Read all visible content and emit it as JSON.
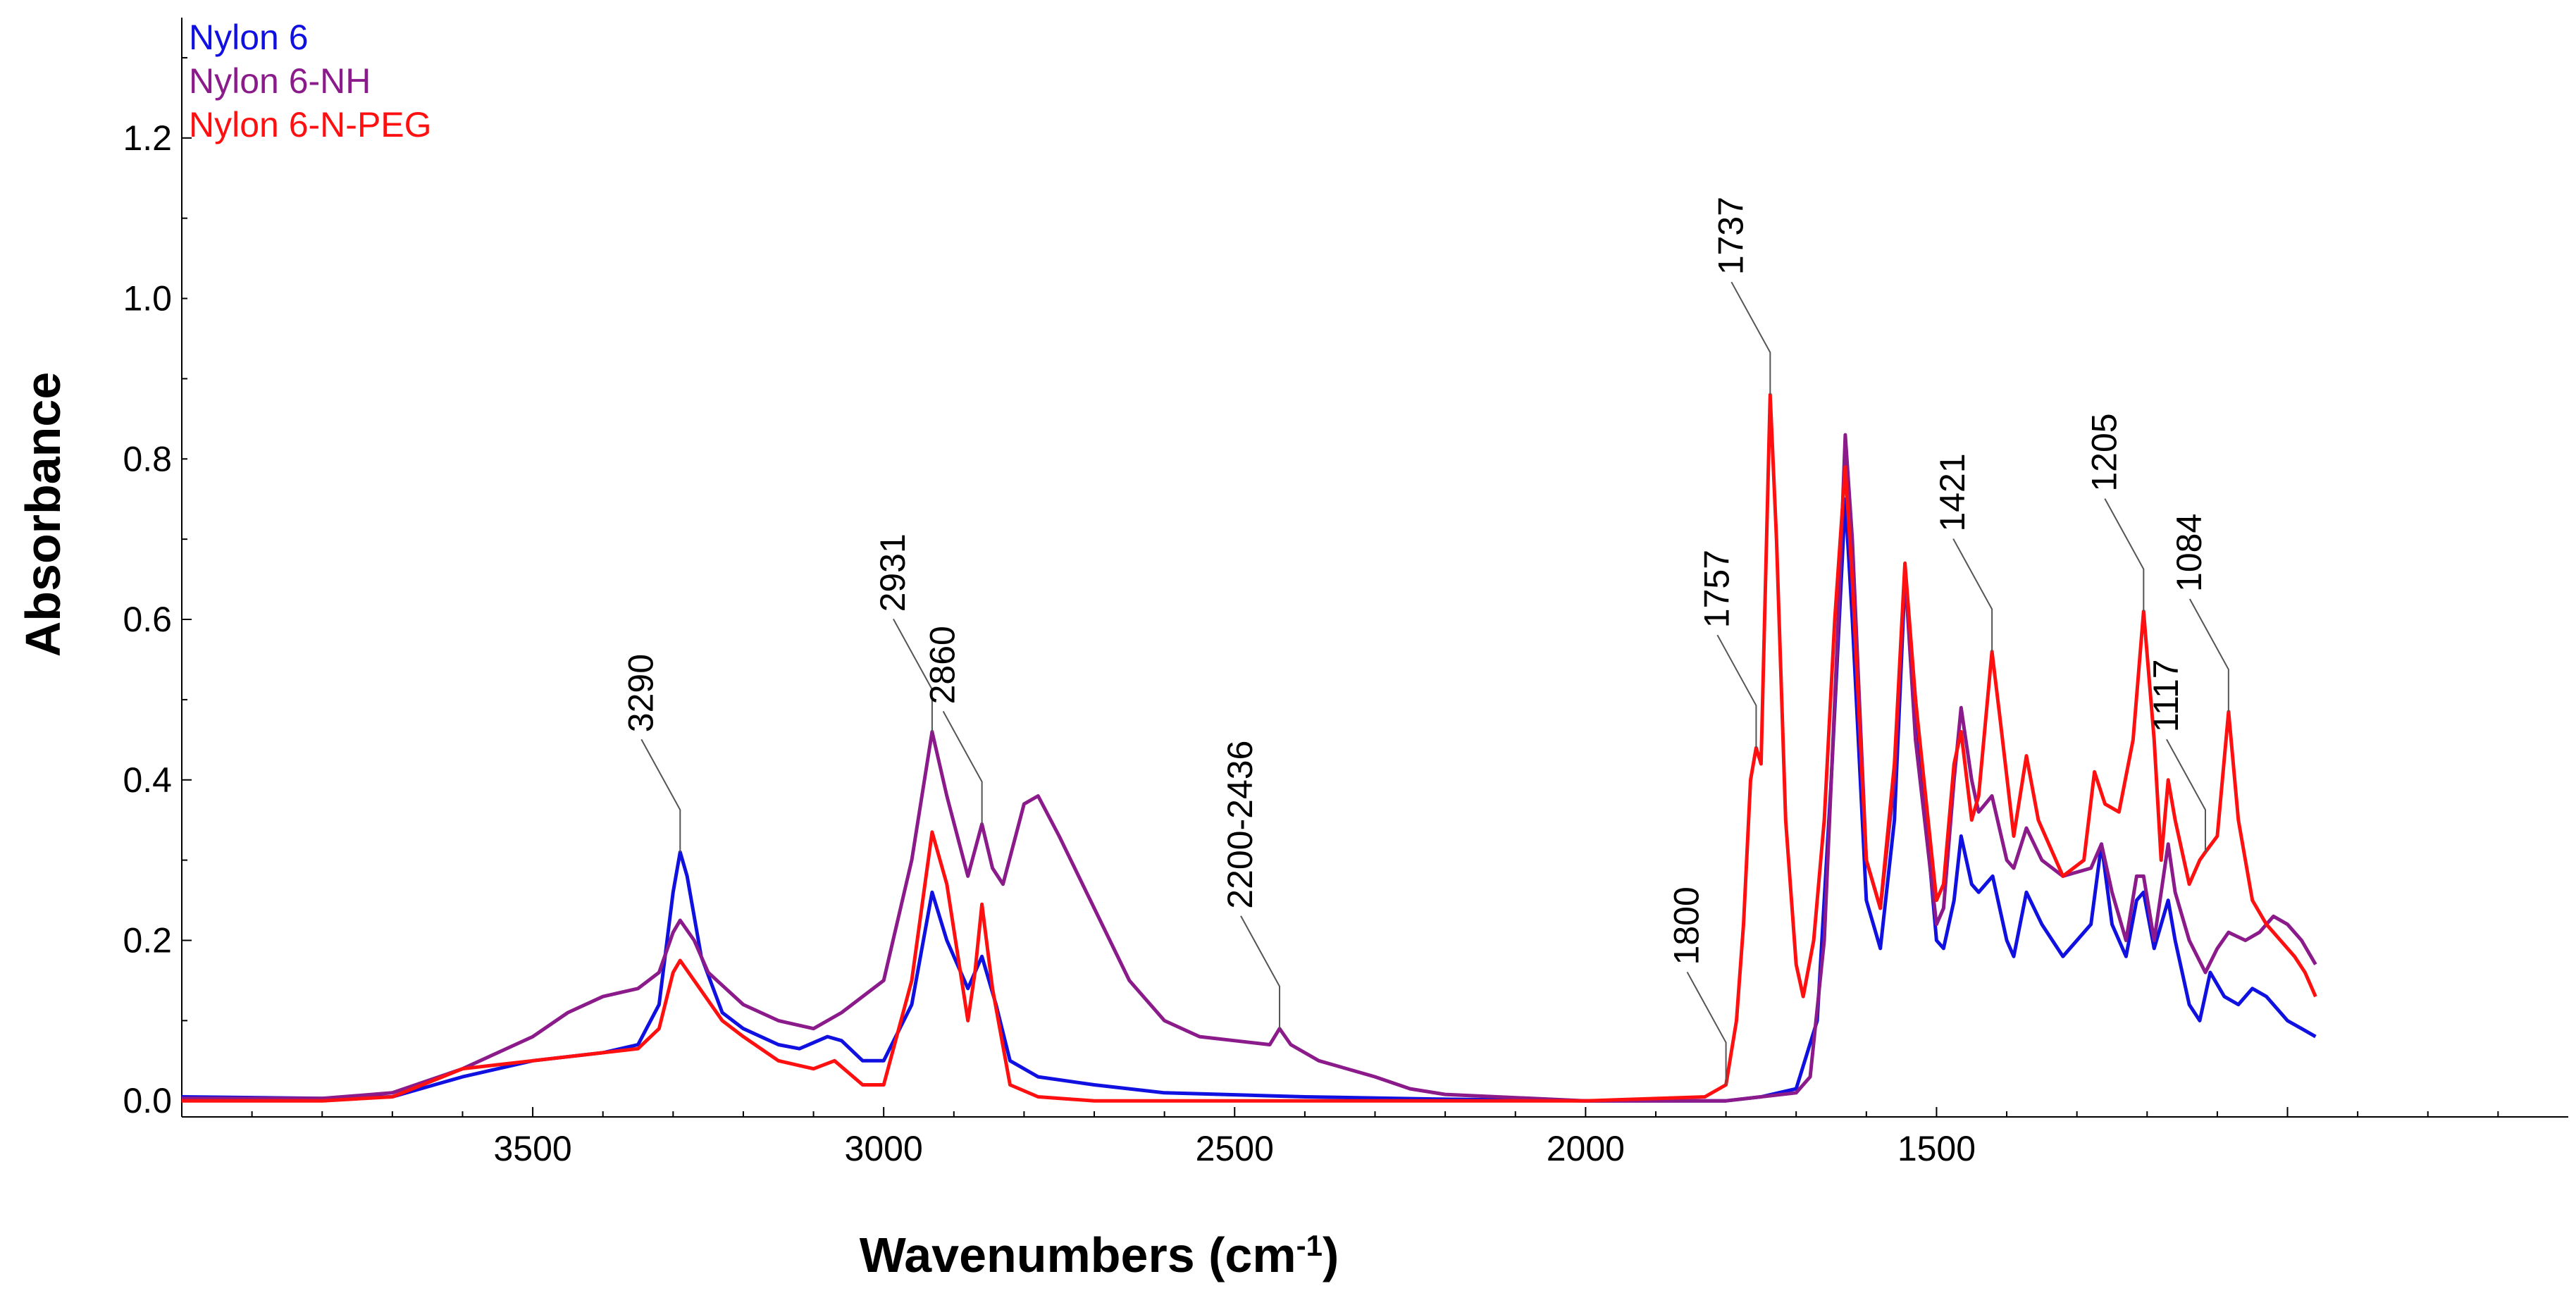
{
  "chart_data": {
    "type": "line",
    "title": "",
    "xlabel": "Wavenumbers (cm",
    "xlabel_sup": "-1",
    "xlabel_suffix": ")",
    "ylabel": "Absorbance",
    "xlim": [
      4000,
      600
    ],
    "ylim": [
      -0.02,
      1.35
    ],
    "grid": false,
    "legend_position": "top-left",
    "x_ticks": [
      3500,
      3000,
      2500,
      2000,
      1500
    ],
    "x_tick_labels": [
      "3500",
      "3000",
      "2500",
      "2000",
      "1500"
    ],
    "y_ticks": [
      0.0,
      0.2,
      0.4,
      0.6,
      0.8,
      1.0,
      1.2
    ],
    "y_tick_labels": [
      "0.0",
      "0.2",
      "0.4",
      "0.6",
      "0.8",
      "1.0",
      "1.2"
    ],
    "series": [
      {
        "name": "Nylon 6",
        "color": "#1010e0",
        "points": [
          [
            4000,
            0.005
          ],
          [
            3800,
            0.003
          ],
          [
            3700,
            0.005
          ],
          [
            3600,
            0.03
          ],
          [
            3500,
            0.05
          ],
          [
            3400,
            0.06
          ],
          [
            3350,
            0.07
          ],
          [
            3320,
            0.12
          ],
          [
            3300,
            0.26
          ],
          [
            3290,
            0.31
          ],
          [
            3280,
            0.28
          ],
          [
            3260,
            0.18
          ],
          [
            3230,
            0.11
          ],
          [
            3200,
            0.09
          ],
          [
            3150,
            0.07
          ],
          [
            3120,
            0.065
          ],
          [
            3080,
            0.08
          ],
          [
            3060,
            0.075
          ],
          [
            3030,
            0.05
          ],
          [
            3000,
            0.05
          ],
          [
            2960,
            0.12
          ],
          [
            2931,
            0.26
          ],
          [
            2910,
            0.2
          ],
          [
            2880,
            0.14
          ],
          [
            2860,
            0.18
          ],
          [
            2840,
            0.12
          ],
          [
            2820,
            0.05
          ],
          [
            2780,
            0.03
          ],
          [
            2700,
            0.02
          ],
          [
            2600,
            0.01
          ],
          [
            2400,
            0.005
          ],
          [
            2200,
            0.002
          ],
          [
            2000,
            0.0
          ],
          [
            1800,
            0.0
          ],
          [
            1750,
            0.005
          ],
          [
            1700,
            0.015
          ],
          [
            1670,
            0.1
          ],
          [
            1650,
            0.4
          ],
          [
            1630,
            0.75
          ],
          [
            1620,
            0.6
          ],
          [
            1600,
            0.25
          ],
          [
            1580,
            0.19
          ],
          [
            1560,
            0.35
          ],
          [
            1545,
            0.65
          ],
          [
            1530,
            0.5
          ],
          [
            1500,
            0.2
          ],
          [
            1490,
            0.19
          ],
          [
            1475,
            0.25
          ],
          [
            1465,
            0.33
          ],
          [
            1450,
            0.27
          ],
          [
            1440,
            0.26
          ],
          [
            1420,
            0.28
          ],
          [
            1400,
            0.2
          ],
          [
            1390,
            0.18
          ],
          [
            1372,
            0.26
          ],
          [
            1350,
            0.22
          ],
          [
            1320,
            0.18
          ],
          [
            1280,
            0.22
          ],
          [
            1265,
            0.32
          ],
          [
            1250,
            0.22
          ],
          [
            1230,
            0.18
          ],
          [
            1215,
            0.25
          ],
          [
            1205,
            0.26
          ],
          [
            1190,
            0.19
          ],
          [
            1170,
            0.25
          ],
          [
            1160,
            0.2
          ],
          [
            1140,
            0.12
          ],
          [
            1125,
            0.1
          ],
          [
            1110,
            0.16
          ],
          [
            1090,
            0.13
          ],
          [
            1070,
            0.12
          ],
          [
            1050,
            0.14
          ],
          [
            1030,
            0.13
          ],
          [
            1000,
            0.1
          ],
          [
            980,
            0.09
          ],
          [
            960,
            0.08
          ]
        ]
      },
      {
        "name": "Nylon 6-NH",
        "color": "#8b1a8b",
        "points": [
          [
            4000,
            0.003
          ],
          [
            3800,
            0.003
          ],
          [
            3700,
            0.01
          ],
          [
            3600,
            0.04
          ],
          [
            3500,
            0.08
          ],
          [
            3450,
            0.11
          ],
          [
            3400,
            0.13
          ],
          [
            3350,
            0.14
          ],
          [
            3320,
            0.16
          ],
          [
            3300,
            0.21
          ],
          [
            3290,
            0.225
          ],
          [
            3270,
            0.2
          ],
          [
            3250,
            0.16
          ],
          [
            3200,
            0.12
          ],
          [
            3150,
            0.1
          ],
          [
            3100,
            0.09
          ],
          [
            3060,
            0.11
          ],
          [
            3000,
            0.15
          ],
          [
            2960,
            0.3
          ],
          [
            2931,
            0.46
          ],
          [
            2910,
            0.38
          ],
          [
            2880,
            0.28
          ],
          [
            2860,
            0.345
          ],
          [
            2845,
            0.29
          ],
          [
            2830,
            0.27
          ],
          [
            2800,
            0.37
          ],
          [
            2780,
            0.38
          ],
          [
            2750,
            0.33
          ],
          [
            2700,
            0.24
          ],
          [
            2650,
            0.15
          ],
          [
            2600,
            0.1
          ],
          [
            2550,
            0.08
          ],
          [
            2500,
            0.075
          ],
          [
            2450,
            0.07
          ],
          [
            2436,
            0.09
          ],
          [
            2420,
            0.07
          ],
          [
            2380,
            0.05
          ],
          [
            2300,
            0.03
          ],
          [
            2250,
            0.015
          ],
          [
            2200,
            0.008
          ],
          [
            2000,
            0.0
          ],
          [
            1800,
            0.0
          ],
          [
            1750,
            0.005
          ],
          [
            1700,
            0.01
          ],
          [
            1680,
            0.03
          ],
          [
            1660,
            0.2
          ],
          [
            1640,
            0.6
          ],
          [
            1630,
            0.83
          ],
          [
            1620,
            0.7
          ],
          [
            1600,
            0.3
          ],
          [
            1580,
            0.24
          ],
          [
            1560,
            0.4
          ],
          [
            1545,
            0.66
          ],
          [
            1530,
            0.45
          ],
          [
            1500,
            0.22
          ],
          [
            1490,
            0.24
          ],
          [
            1475,
            0.4
          ],
          [
            1465,
            0.49
          ],
          [
            1450,
            0.4
          ],
          [
            1440,
            0.36
          ],
          [
            1421,
            0.38
          ],
          [
            1400,
            0.3
          ],
          [
            1390,
            0.29
          ],
          [
            1372,
            0.34
          ],
          [
            1350,
            0.3
          ],
          [
            1320,
            0.28
          ],
          [
            1280,
            0.29
          ],
          [
            1265,
            0.32
          ],
          [
            1250,
            0.26
          ],
          [
            1230,
            0.2
          ],
          [
            1215,
            0.28
          ],
          [
            1205,
            0.28
          ],
          [
            1190,
            0.2
          ],
          [
            1170,
            0.32
          ],
          [
            1160,
            0.26
          ],
          [
            1140,
            0.2
          ],
          [
            1117,
            0.16
          ],
          [
            1100,
            0.19
          ],
          [
            1084,
            0.21
          ],
          [
            1060,
            0.2
          ],
          [
            1040,
            0.21
          ],
          [
            1020,
            0.23
          ],
          [
            1000,
            0.22
          ],
          [
            980,
            0.2
          ],
          [
            960,
            0.17
          ]
        ]
      },
      {
        "name": "Nylon 6-N-PEG",
        "color": "#ff1010",
        "points": [
          [
            4000,
            0.0
          ],
          [
            3800,
            0.0
          ],
          [
            3700,
            0.005
          ],
          [
            3600,
            0.04
          ],
          [
            3550,
            0.045
          ],
          [
            3500,
            0.05
          ],
          [
            3400,
            0.06
          ],
          [
            3350,
            0.065
          ],
          [
            3320,
            0.09
          ],
          [
            3300,
            0.16
          ],
          [
            3290,
            0.175
          ],
          [
            3270,
            0.15
          ],
          [
            3230,
            0.1
          ],
          [
            3200,
            0.08
          ],
          [
            3150,
            0.05
          ],
          [
            3100,
            0.04
          ],
          [
            3070,
            0.05
          ],
          [
            3030,
            0.02
          ],
          [
            3000,
            0.02
          ],
          [
            2960,
            0.15
          ],
          [
            2931,
            0.335
          ],
          [
            2910,
            0.27
          ],
          [
            2880,
            0.1
          ],
          [
            2870,
            0.16
          ],
          [
            2860,
            0.245
          ],
          [
            2845,
            0.14
          ],
          [
            2820,
            0.02
          ],
          [
            2780,
            0.005
          ],
          [
            2700,
            0.0
          ],
          [
            2400,
            0.0
          ],
          [
            2000,
            0.0
          ],
          [
            1830,
            0.005
          ],
          [
            1800,
            0.02
          ],
          [
            1785,
            0.1
          ],
          [
            1775,
            0.22
          ],
          [
            1765,
            0.4
          ],
          [
            1757,
            0.44
          ],
          [
            1750,
            0.42
          ],
          [
            1745,
            0.6
          ],
          [
            1737,
            0.88
          ],
          [
            1728,
            0.7
          ],
          [
            1715,
            0.35
          ],
          [
            1700,
            0.17
          ],
          [
            1690,
            0.13
          ],
          [
            1675,
            0.2
          ],
          [
            1660,
            0.35
          ],
          [
            1645,
            0.6
          ],
          [
            1630,
            0.79
          ],
          [
            1620,
            0.65
          ],
          [
            1600,
            0.3
          ],
          [
            1580,
            0.24
          ],
          [
            1560,
            0.42
          ],
          [
            1545,
            0.67
          ],
          [
            1530,
            0.5
          ],
          [
            1500,
            0.25
          ],
          [
            1490,
            0.27
          ],
          [
            1475,
            0.42
          ],
          [
            1465,
            0.46
          ],
          [
            1450,
            0.35
          ],
          [
            1440,
            0.38
          ],
          [
            1421,
            0.56
          ],
          [
            1410,
            0.48
          ],
          [
            1390,
            0.33
          ],
          [
            1372,
            0.43
          ],
          [
            1355,
            0.35
          ],
          [
            1320,
            0.28
          ],
          [
            1290,
            0.3
          ],
          [
            1275,
            0.41
          ],
          [
            1260,
            0.37
          ],
          [
            1240,
            0.36
          ],
          [
            1220,
            0.45
          ],
          [
            1205,
            0.61
          ],
          [
            1190,
            0.45
          ],
          [
            1180,
            0.3
          ],
          [
            1170,
            0.4
          ],
          [
            1160,
            0.35
          ],
          [
            1140,
            0.27
          ],
          [
            1125,
            0.3
          ],
          [
            1117,
            0.31
          ],
          [
            1100,
            0.33
          ],
          [
            1084,
            0.485
          ],
          [
            1070,
            0.35
          ],
          [
            1050,
            0.25
          ],
          [
            1030,
            0.22
          ],
          [
            1010,
            0.2
          ],
          [
            990,
            0.18
          ],
          [
            975,
            0.16
          ],
          [
            960,
            0.13
          ]
        ]
      }
    ],
    "annotations": [
      {
        "label": "3290",
        "x": 3290,
        "y": 0.31
      },
      {
        "label": "2931",
        "x": 2931,
        "y": 0.46
      },
      {
        "label": "2860",
        "x": 2860,
        "y": 0.345
      },
      {
        "label": "2200-2436",
        "x": 2436,
        "y": 0.09
      },
      {
        "label": "1800",
        "x": 1800,
        "y": 0.02
      },
      {
        "label": "1757",
        "x": 1757,
        "y": 0.44
      },
      {
        "label": "1737",
        "x": 1737,
        "y": 0.88
      },
      {
        "label": "1421",
        "x": 1421,
        "y": 0.56
      },
      {
        "label": "1205",
        "x": 1205,
        "y": 0.61
      },
      {
        "label": "1117",
        "x": 1117,
        "y": 0.31
      },
      {
        "label": "1084",
        "x": 1084,
        "y": 0.485
      }
    ]
  }
}
